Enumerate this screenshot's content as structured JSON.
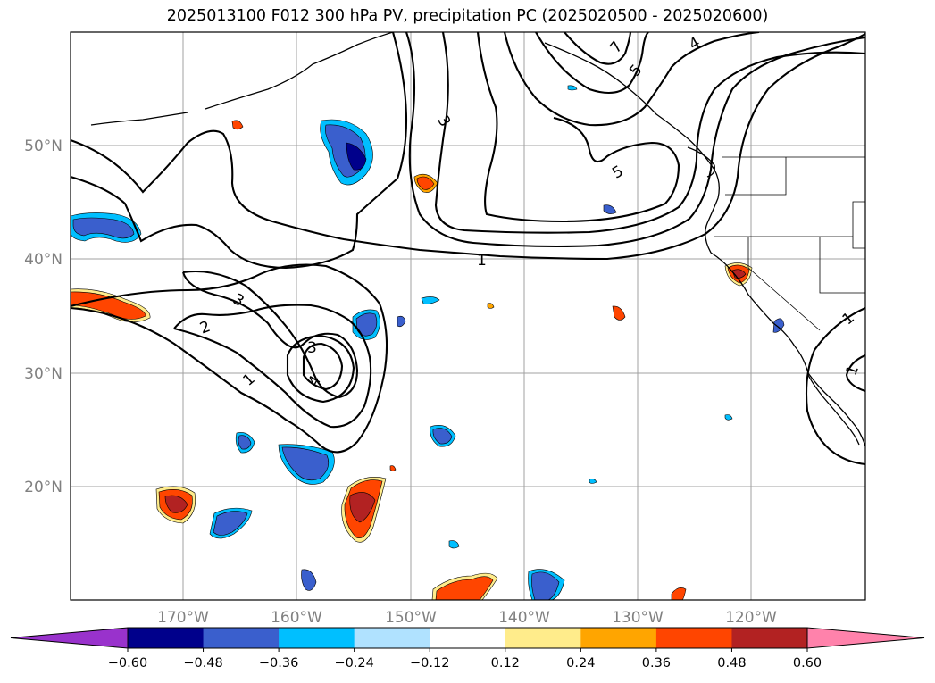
{
  "title": "2025013100 F012 300 hPa PV, precipitation PC (2025020500 - 2025020600)",
  "lat_labels": [
    "50°N",
    "40°N",
    "30°N",
    "20°N"
  ],
  "lon_labels": [
    "170°W",
    "160°W",
    "150°W",
    "140°W",
    "130°W",
    "120°W"
  ],
  "contour_labels": [
    "1",
    "1",
    "2",
    "3",
    "3",
    "4",
    "3",
    "5",
    "5",
    "7",
    "4",
    "1",
    "1"
  ],
  "colorbar": {
    "tick_labels": [
      "−0.60",
      "−0.48",
      "−0.36",
      "−0.24",
      "−0.12",
      "0.12",
      "0.24",
      "0.36",
      "0.48",
      "0.60"
    ],
    "colors": [
      "#9932cc",
      "#00008b",
      "#3a5fcd",
      "#00bfff",
      "#b0e2ff",
      "#ffffff",
      "#ffec8b",
      "#ffa500",
      "#ff4500",
      "#b22222",
      "#ff82ab"
    ]
  },
  "colors": {
    "gridline": "#a0a0a0",
    "contour": "#000000",
    "coast": "#000000"
  }
}
